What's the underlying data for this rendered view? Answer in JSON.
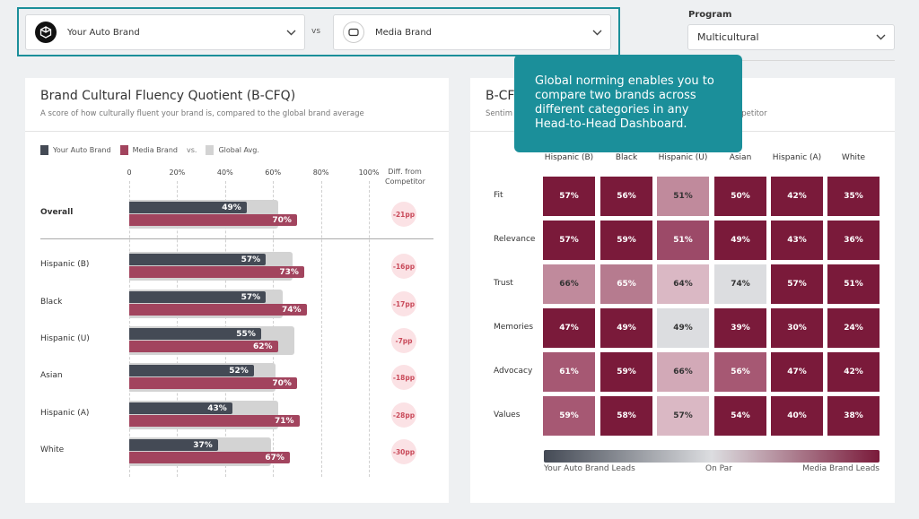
{
  "compare": {
    "brand_a": "Your Auto Brand",
    "vs": "vs",
    "brand_b": "Media Brand"
  },
  "program": {
    "label": "Program",
    "value": "Multicultural"
  },
  "left_panel": {
    "title": "Brand Cultural Fluency Quotient (B-CFQ)",
    "subtitle": "A score of how culturally fluent your brand is, compared to the global brand average",
    "legend": {
      "a": "Your Auto Brand",
      "b": "Media Brand",
      "vs": "vs.",
      "global": "Global Avg."
    },
    "diff_header_1": "Diff. from",
    "diff_header_2": "Competitor"
  },
  "right_panel": {
    "title": "B-CF",
    "subtitle_left": "Sentim",
    "subtitle_right": "mpetitor"
  },
  "tooltip": {
    "text": "Global norming enables you to compare two brands across different categories in any Head-to-Head Dashboard."
  },
  "colors": {
    "auto": "#444a55",
    "media": "#a2445e",
    "global": "#d3d3d3",
    "accent": "#1b8f9a"
  },
  "chart_data": [
    {
      "type": "bar",
      "axis_ticks": [
        "0",
        "20%",
        "40%",
        "60%",
        "80%",
        "100%"
      ],
      "xlim": [
        0,
        100
      ],
      "categories": [
        "Overall",
        "Hispanic (B)",
        "Black",
        "Hispanic (U)",
        "Asian",
        "Hispanic (A)",
        "White"
      ],
      "series": [
        {
          "name": "Your Auto Brand",
          "values": [
            49,
            57,
            57,
            55,
            52,
            43,
            37
          ],
          "labels": [
            "49%",
            "57%",
            "57%",
            "55%",
            "52%",
            "43%",
            "37%"
          ]
        },
        {
          "name": "Media Brand",
          "values": [
            70,
            73,
            74,
            62,
            70,
            71,
            67
          ],
          "labels": [
            "70%",
            "73%",
            "74%",
            "62%",
            "70%",
            "71%",
            "67%"
          ]
        },
        {
          "name": "Global Avg.",
          "values": [
            62,
            68,
            64,
            69,
            61,
            62,
            59
          ]
        }
      ],
      "diff": [
        "-21pp",
        "-16pp",
        "-17pp",
        "-7pp",
        "-18pp",
        "-28pp",
        "-30pp"
      ]
    },
    {
      "type": "heatmap",
      "columns": [
        "Hispanic (B)",
        "Black",
        "Hispanic (U)",
        "Asian",
        "Hispanic (A)",
        "White"
      ],
      "rows": [
        "Fit",
        "Relevance",
        "Trust",
        "Memories",
        "Advocacy",
        "Values"
      ],
      "values": [
        [
          "57%",
          "56%",
          "51%",
          "50%",
          "42%",
          "35%"
        ],
        [
          "57%",
          "59%",
          "51%",
          "49%",
          "43%",
          "36%"
        ],
        [
          "66%",
          "65%",
          "64%",
          "74%",
          "57%",
          "51%"
        ],
        [
          "47%",
          "49%",
          "49%",
          "39%",
          "30%",
          "24%"
        ],
        [
          "61%",
          "59%",
          "66%",
          "56%",
          "47%",
          "42%"
        ],
        [
          "59%",
          "58%",
          "57%",
          "54%",
          "40%",
          "38%"
        ]
      ],
      "cell_colors": [
        [
          "#7a1a3a",
          "#7a1a3a",
          "#c08a9c",
          "#7a1a3a",
          "#7a1a3a",
          "#7a1a3a"
        ],
        [
          "#7a1a3a",
          "#7a1a3a",
          "#9c4a68",
          "#7a1a3a",
          "#7a1a3a",
          "#7a1a3a"
        ],
        [
          "#c08a9c",
          "#b67b8f",
          "#dab8c4",
          "#dcdde0",
          "#7a1a3a",
          "#7a1a3a"
        ],
        [
          "#7a1a3a",
          "#7a1a3a",
          "#dcdde0",
          "#7a1a3a",
          "#7a1a3a",
          "#7a1a3a"
        ],
        [
          "#a65873",
          "#7a1a3a",
          "#d2a9b7",
          "#a65873",
          "#7a1a3a",
          "#7a1a3a"
        ],
        [
          "#a65873",
          "#7a1a3a",
          "#dab8c4",
          "#7a1a3a",
          "#7a1a3a",
          "#7a1a3a"
        ]
      ],
      "scale": {
        "left": "Your Auto Brand Leads",
        "middle": "On Par",
        "right": "Media Brand Leads"
      }
    }
  ]
}
